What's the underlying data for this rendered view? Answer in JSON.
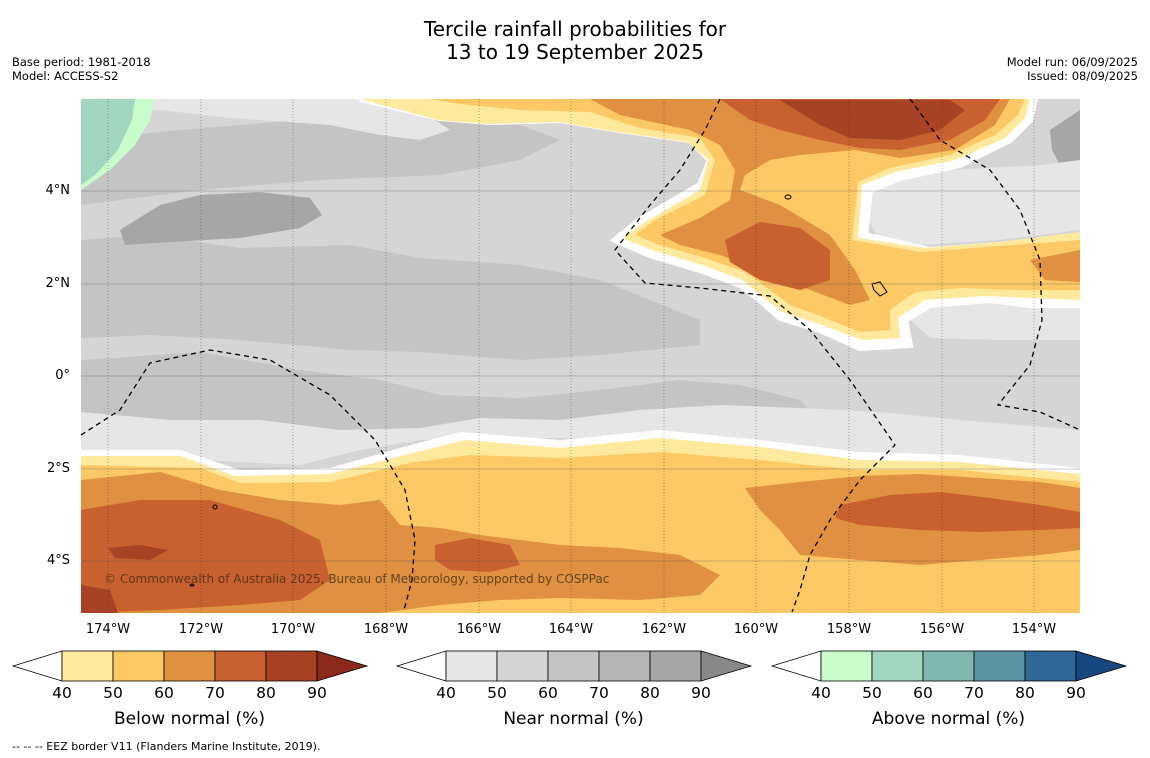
{
  "title": {
    "line1": "Tercile rainfall probabilities for",
    "line2": "13 to 19 September 2025"
  },
  "meta_left": {
    "base_period": "Base period: 1981-2018",
    "model": "Model: ACCESS-S2"
  },
  "meta_right": {
    "model_run": "Model run: 06/09/2025",
    "issued": "Issued: 08/09/2025"
  },
  "map": {
    "lat_labels": [
      "4°N",
      "2°N",
      "0°",
      "2°S",
      "4°S"
    ],
    "lon_labels": [
      "174°W",
      "172°W",
      "170°W",
      "168°W",
      "166°W",
      "164°W",
      "162°W",
      "160°W",
      "158°W",
      "156°W",
      "154°W"
    ],
    "copyright": "© Commonwealth of Australia 2025, Bureau of Meteorology, supported by COSPPac",
    "colors": {
      "background_gray": "#d5d5d5",
      "light_gray": "#e6e6e6",
      "mid_gray": "#c4c4c4",
      "dark_gray": "#a6a6a6",
      "below_50": "#fee99d",
      "below_60": "#fdc964",
      "below_70": "#df9040",
      "below_80": "#c9602f",
      "below_90": "#a84224",
      "above_50": "#c8fccb",
      "above_60": "#a1d6c0"
    }
  },
  "colorbars": [
    {
      "label": "Below normal (%)",
      "ticks": [
        "40",
        "50",
        "60",
        "70",
        "80",
        "90"
      ],
      "colors": [
        "#fee99d",
        "#fdc964",
        "#df9040",
        "#c9602f",
        "#a84224"
      ],
      "extend_color": "#8b2a1a"
    },
    {
      "label": "Near normal (%)",
      "ticks": [
        "40",
        "50",
        "60",
        "70",
        "80",
        "90"
      ],
      "colors": [
        "#e6e6e6",
        "#d5d5d5",
        "#c4c4c4",
        "#b4b4b4",
        "#a6a6a6"
      ],
      "extend_color": "#888888"
    },
    {
      "label": "Above normal (%)",
      "ticks": [
        "40",
        "50",
        "60",
        "70",
        "80",
        "90"
      ],
      "colors": [
        "#c8fccb",
        "#a1d6c0",
        "#81b7b1",
        "#5b93a2",
        "#2f6796"
      ],
      "extend_color": "#17477f"
    }
  ],
  "footnote": "--  --  -- EEZ border V11 (Flanders Marine Institute, 2019)."
}
